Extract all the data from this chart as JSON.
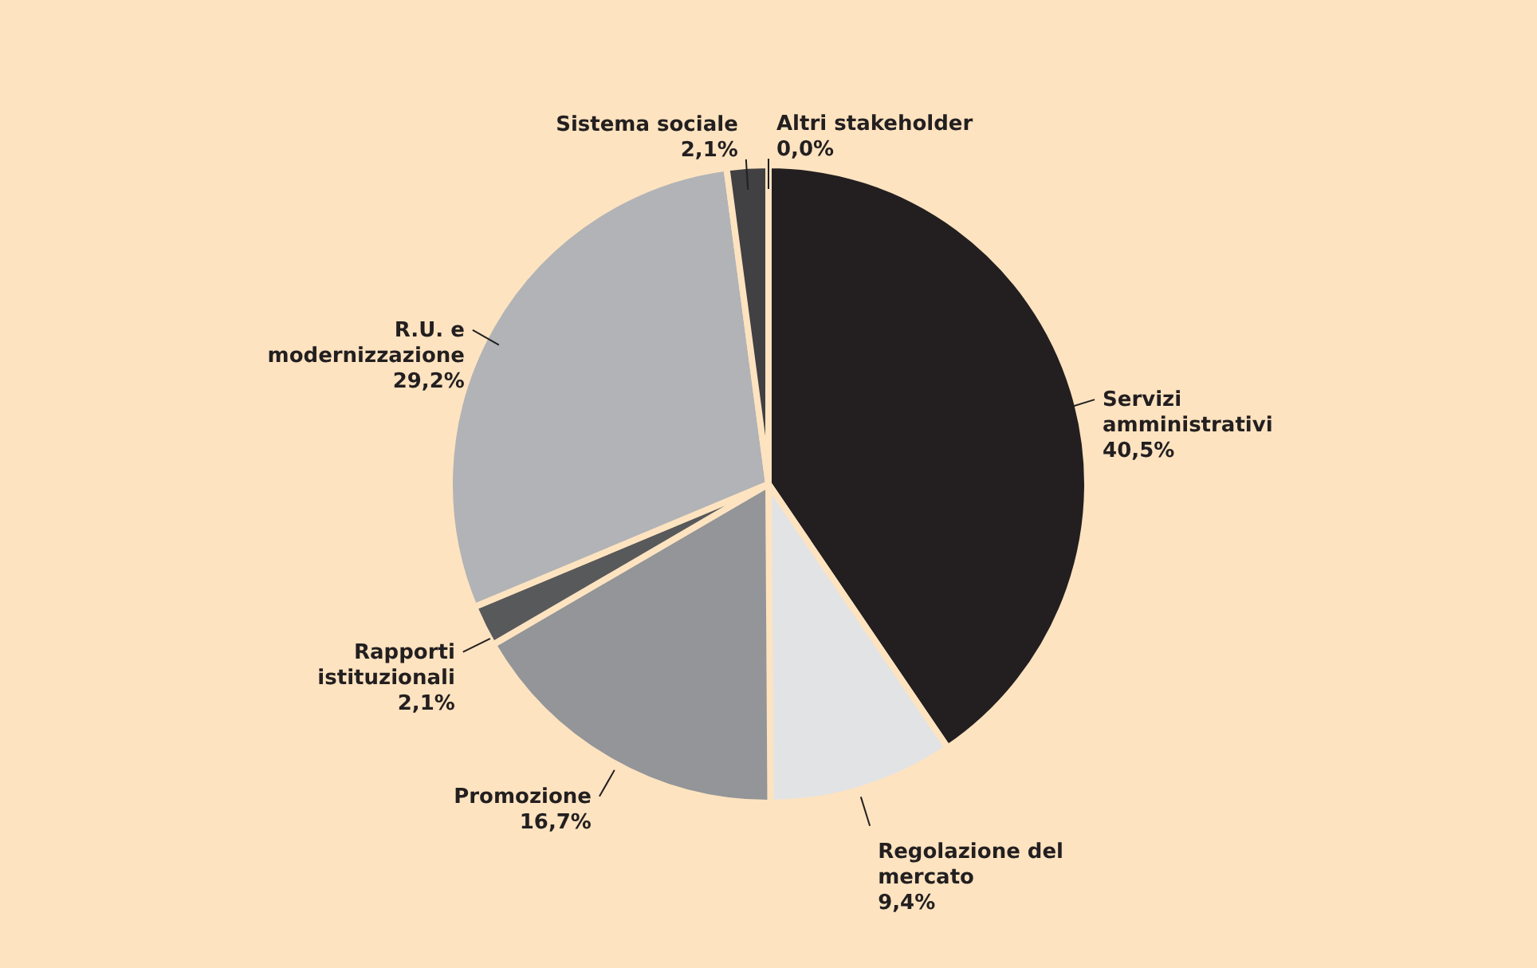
{
  "chart_data": {
    "type": "pie",
    "categories": [
      "Servizi amministrativi",
      "Regolazione del mercato",
      "Promozione",
      "Rapporti istituzionali",
      "R.U. e modernizzazione",
      "Sistema sociale",
      "Altri stakeholder"
    ],
    "values": [
      40.5,
      9.4,
      16.7,
      2.1,
      29.2,
      2.1,
      0.0
    ],
    "value_labels": [
      "40,5%",
      "9,4%",
      "16,7%",
      "2,1%",
      "29,2%",
      "2,1%",
      "0,0%"
    ],
    "colors": [
      "#231f20",
      "#e2e3e5",
      "#939598",
      "#58595b",
      "#b1b3b6",
      "#414042",
      "#808285"
    ]
  }
}
